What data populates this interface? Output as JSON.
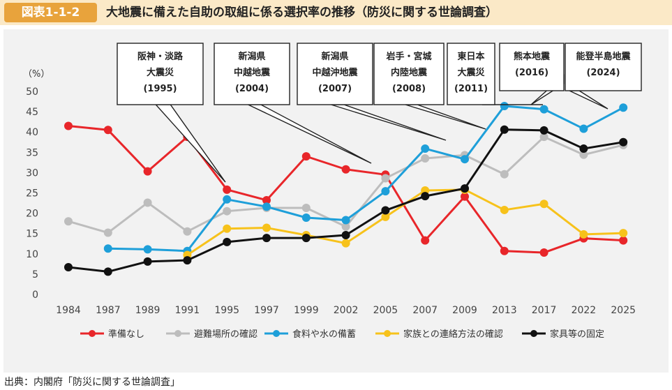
{
  "header": {
    "badge": "図表1-1-2",
    "title": "大地震に備えた自助の取組に係る選択率の推移（防災に関する世論調査）"
  },
  "source": "出典：内閣府「防災に関する世論調査」",
  "chart_data": {
    "type": "line",
    "title": "",
    "ylabel": "（%）",
    "xlabel": "",
    "ylim": [
      0,
      50
    ],
    "yticks": [
      0,
      5,
      10,
      15,
      20,
      25,
      30,
      35,
      40,
      45,
      50
    ],
    "grid": false,
    "legend_position": "bottom",
    "categories": [
      "1984",
      "1987",
      "1989",
      "1991",
      "1995",
      "1997",
      "1999",
      "2002",
      "2005",
      "2007",
      "2009",
      "2013",
      "2017",
      "2022",
      "2025"
    ],
    "series": [
      {
        "name": "準備なし",
        "color": "#E8262A",
        "values": [
          41.5,
          40.5,
          30.3,
          38.8,
          25.8,
          23.2,
          34.0,
          30.8,
          29.5,
          13.3,
          24.1,
          10.7,
          10.3,
          13.8,
          13.3
        ]
      },
      {
        "name": "避難場所の確認",
        "color": "#BDBDBD",
        "values": [
          18.0,
          15.2,
          22.6,
          15.5,
          20.5,
          21.3,
          21.3,
          16.7,
          28.6,
          33.5,
          34.3,
          29.6,
          38.8,
          34.4,
          36.8
        ]
      },
      {
        "name": "食料や水の備蓄",
        "color": "#1E9FD9",
        "values": [
          null,
          11.3,
          11.1,
          10.7,
          23.4,
          21.6,
          18.9,
          18.3,
          25.4,
          35.9,
          33.3,
          46.4,
          45.6,
          40.8,
          46.0
        ]
      },
      {
        "name": "家族との連絡方法の確認",
        "color": "#F7C21B",
        "values": [
          null,
          null,
          null,
          9.7,
          16.2,
          16.4,
          14.6,
          12.6,
          19.1,
          25.6,
          25.8,
          20.8,
          22.3,
          14.8,
          15.1
        ]
      },
      {
        "name": "家具等の固定",
        "color": "#111111",
        "values": [
          6.7,
          5.6,
          8.1,
          8.4,
          12.9,
          13.9,
          13.9,
          14.6,
          20.7,
          24.2,
          26.1,
          40.6,
          40.4,
          35.9,
          37.5
        ]
      }
    ],
    "annotations": [
      {
        "lines": [
          "阪神・淡路",
          "大震災",
          "(1995)"
        ],
        "category": "1995"
      },
      {
        "lines": [
          "新潟県",
          "中越地震",
          "(2004)"
        ],
        "category": "2005"
      },
      {
        "lines": [
          "新潟県",
          "中越沖地震",
          "(2007)"
        ],
        "category": "2007"
      },
      {
        "lines": [
          "岩手・宮城",
          "内陸地震",
          "(2008)"
        ],
        "category": "2009"
      },
      {
        "lines": [
          "東日本",
          "大震災",
          "(2011)"
        ],
        "category": "2013"
      },
      {
        "lines": [
          "熊本地震",
          "(2016)"
        ],
        "category": "2017"
      },
      {
        "lines": [
          "能登半島地震",
          "(2024)"
        ],
        "category": "2025"
      }
    ]
  }
}
